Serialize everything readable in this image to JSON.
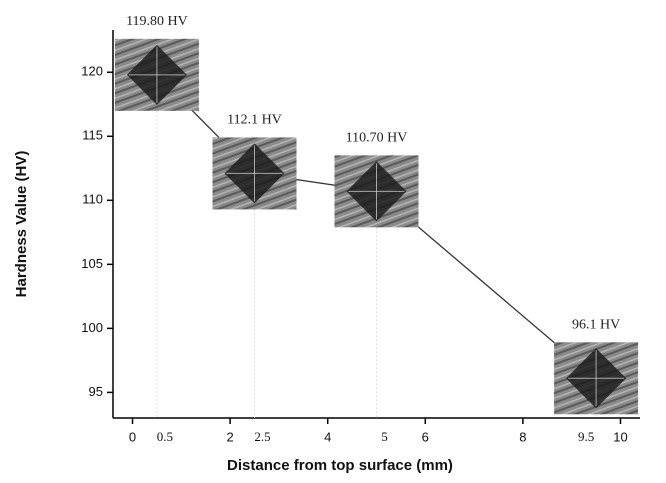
{
  "chart_data": {
    "type": "line",
    "x_label": "Distance from top surface (mm)",
    "y_label": "Hardness Value (HV)",
    "x": [
      0.5,
      2.5,
      5,
      9.5
    ],
    "values": [
      119.8,
      112.1,
      110.7,
      96.1
    ],
    "value_labels": [
      "119.80 HV",
      "112.1 HV",
      "110.70 HV",
      "96.1 HV"
    ],
    "color": "#333333",
    "xlim": [
      -0.4,
      10.4
    ],
    "xticks": [
      0,
      0.5,
      2,
      2.5,
      4,
      5,
      6,
      8,
      9.5,
      10
    ],
    "ylim": [
      93,
      123.3
    ],
    "yticks": [
      95,
      100,
      105,
      110,
      115,
      120
    ],
    "highlight_color": "#e05050"
  }
}
